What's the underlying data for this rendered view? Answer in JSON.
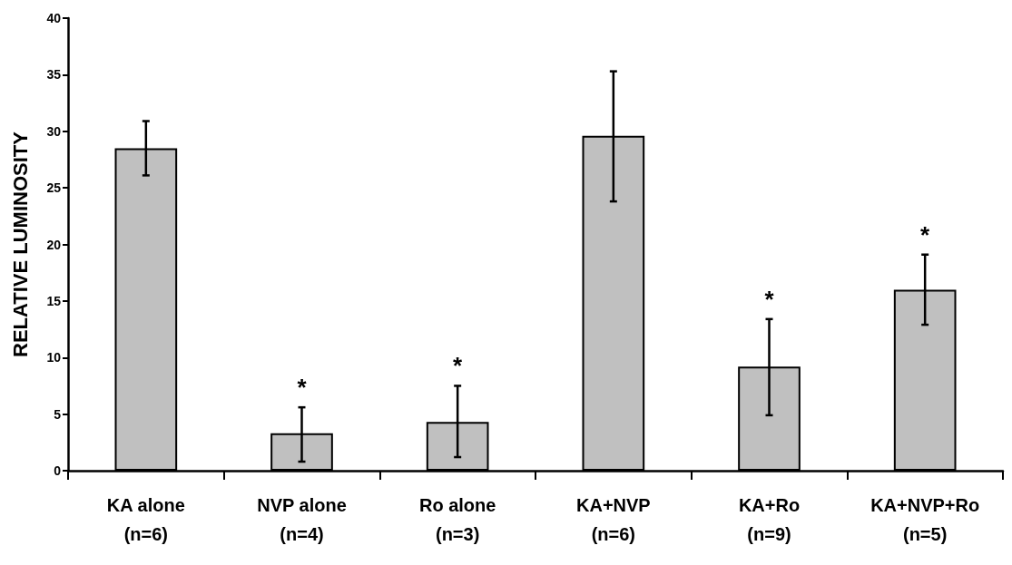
{
  "chart_data": {
    "type": "bar",
    "ylabel": "RELATIVE LUMINOSITY",
    "categories": [
      "KA alone\n(n=6)",
      "NVP alone\n(n=4)",
      "Ro alone\n(n=3)",
      "KA+NVP\n(n=6)",
      "KA+Ro\n(n=9)",
      "KA+NVP+Ro\n(n=5)"
    ],
    "values": [
      28.5,
      3.3,
      4.3,
      29.6,
      9.2,
      16.0
    ],
    "errors": [
      [
        26.1,
        30.9
      ],
      [
        0.8,
        5.6
      ],
      [
        1.2,
        7.5
      ],
      [
        23.8,
        35.3
      ],
      [
        4.9,
        13.4
      ],
      [
        12.9,
        19.1
      ]
    ],
    "color": "#c0c0c0",
    "ylim": [
      0,
      40
    ],
    "yticks": [
      0,
      5,
      10,
      15,
      20,
      25,
      30,
      35,
      40
    ],
    "grid": false,
    "annotations": [
      {
        "text": "*",
        "x": "NVP alone\n(n=4)",
        "y": 5.6
      },
      {
        "text": "*",
        "x": "Ro alone\n(n=3)",
        "y": 7.5
      },
      {
        "text": "*",
        "x": "KA+Ro\n(n=9)",
        "y": 13.4
      },
      {
        "text": "*",
        "x": "KA+NVP+Ro\n(n=5)",
        "y": 19.1
      }
    ]
  }
}
